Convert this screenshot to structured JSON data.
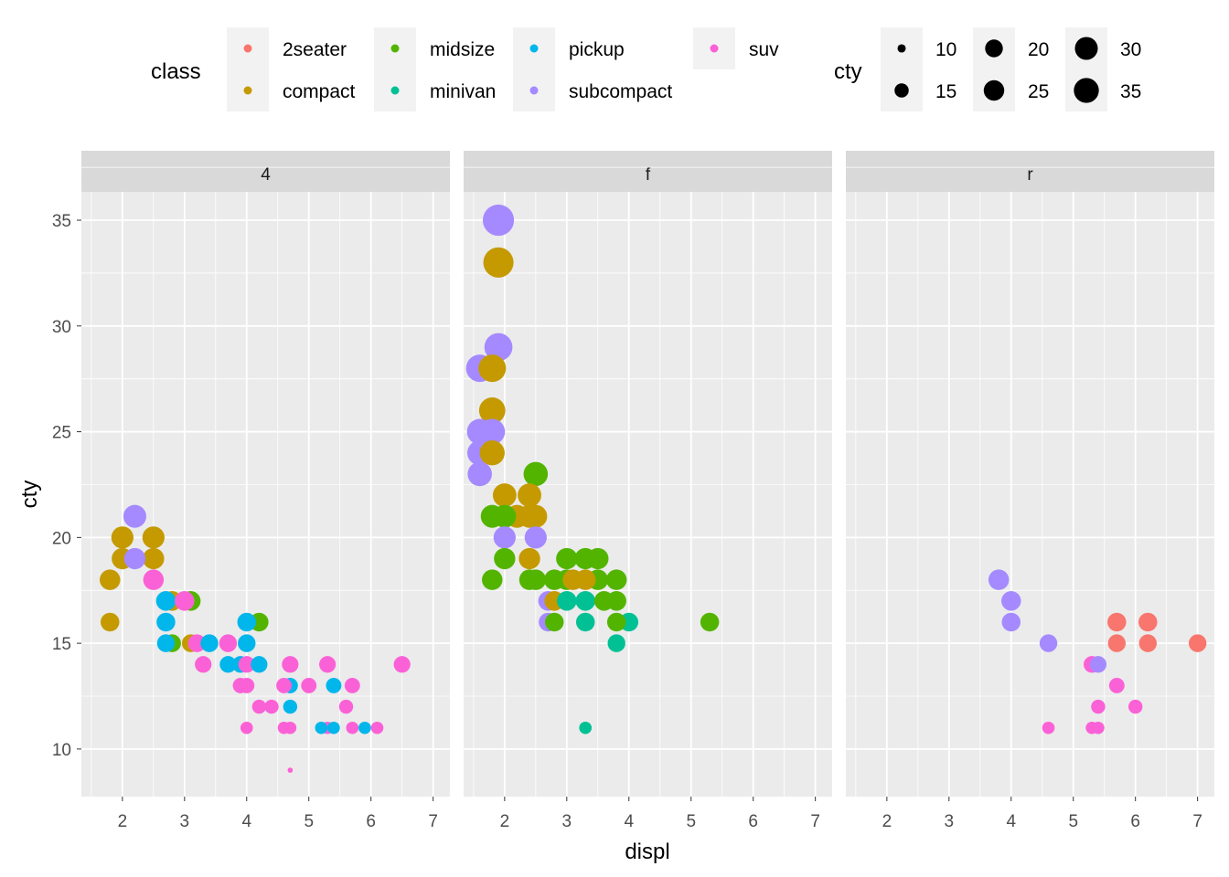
{
  "chart_data": {
    "type": "scatter",
    "xlabel": "displ",
    "ylabel": "cty",
    "xlim": [
      1.34,
      7.27
    ],
    "ylim": [
      7.75,
      36.34
    ],
    "x_ticks": [
      2,
      3,
      4,
      5,
      6,
      7
    ],
    "y_ticks": [
      10,
      15,
      20,
      25,
      30,
      35
    ],
    "grid": true,
    "legend_position": "top",
    "color_legend": {
      "title": "class",
      "entries": [
        "2seater",
        "compact",
        "midsize",
        "minivan",
        "pickup",
        "subcompact",
        "suv"
      ],
      "colors": {
        "2seater": "#F8766D",
        "compact": "#C49A00",
        "midsize": "#53B400",
        "minivan": "#00C094",
        "pickup": "#00B6EB",
        "subcompact": "#A58AFF",
        "suv": "#FB61D7"
      }
    },
    "size_legend": {
      "title": "cty",
      "entries": [
        10,
        15,
        20,
        25,
        30,
        35
      ]
    },
    "facets": [
      {
        "label": "4",
        "points": [
          [
            1.8,
            18,
            "compact"
          ],
          [
            1.8,
            16,
            "compact"
          ],
          [
            2.0,
            20,
            "compact"
          ],
          [
            2.0,
            19,
            "compact"
          ],
          [
            2.5,
            20,
            "compact"
          ],
          [
            2.5,
            19,
            "compact"
          ],
          [
            2.2,
            21,
            "subcompact"
          ],
          [
            2.2,
            19,
            "subcompact"
          ],
          [
            2.5,
            18,
            "suv"
          ],
          [
            2.8,
            17,
            "compact"
          ],
          [
            3.1,
            17,
            "midsize"
          ],
          [
            2.7,
            17,
            "pickup"
          ],
          [
            3.0,
            17,
            "suv"
          ],
          [
            2.7,
            16,
            "pickup"
          ],
          [
            2.8,
            15,
            "midsize"
          ],
          [
            2.7,
            15,
            "pickup"
          ],
          [
            3.1,
            15,
            "compact"
          ],
          [
            3.2,
            15,
            "suv"
          ],
          [
            3.4,
            15,
            "pickup"
          ],
          [
            3.7,
            15,
            "suv"
          ],
          [
            4.2,
            16,
            "midsize"
          ],
          [
            4.0,
            16,
            "pickup"
          ],
          [
            4.0,
            15,
            "pickup"
          ],
          [
            3.3,
            14,
            "suv"
          ],
          [
            3.7,
            14,
            "pickup"
          ],
          [
            3.9,
            14,
            "pickup"
          ],
          [
            4.0,
            14,
            "suv"
          ],
          [
            4.2,
            14,
            "pickup"
          ],
          [
            4.7,
            14,
            "suv"
          ],
          [
            5.3,
            14,
            "suv"
          ],
          [
            6.5,
            14,
            "suv"
          ],
          [
            3.9,
            13,
            "suv"
          ],
          [
            4.0,
            13,
            "suv"
          ],
          [
            4.7,
            13,
            "pickup"
          ],
          [
            4.6,
            13,
            "suv"
          ],
          [
            5.0,
            13,
            "suv"
          ],
          [
            5.4,
            13,
            "pickup"
          ],
          [
            5.7,
            13,
            "suv"
          ],
          [
            4.2,
            12,
            "suv"
          ],
          [
            4.4,
            12,
            "suv"
          ],
          [
            4.7,
            12,
            "pickup"
          ],
          [
            5.6,
            12,
            "suv"
          ],
          [
            4.0,
            11,
            "suv"
          ],
          [
            4.6,
            11,
            "suv"
          ],
          [
            4.7,
            11,
            "suv"
          ],
          [
            5.3,
            11,
            "suv"
          ],
          [
            5.2,
            11,
            "pickup"
          ],
          [
            5.4,
            11,
            "pickup"
          ],
          [
            5.7,
            11,
            "suv"
          ],
          [
            5.9,
            11,
            "pickup"
          ],
          [
            6.1,
            11,
            "suv"
          ],
          [
            4.7,
            9,
            "suv"
          ]
        ]
      },
      {
        "label": "f",
        "points": [
          [
            1.9,
            35,
            "subcompact"
          ],
          [
            1.9,
            33,
            "compact"
          ],
          [
            1.9,
            29,
            "subcompact"
          ],
          [
            1.6,
            28,
            "subcompact"
          ],
          [
            1.8,
            28,
            "compact"
          ],
          [
            1.8,
            26,
            "compact"
          ],
          [
            1.6,
            25,
            "subcompact"
          ],
          [
            1.8,
            25,
            "subcompact"
          ],
          [
            1.6,
            24,
            "subcompact"
          ],
          [
            1.8,
            24,
            "compact"
          ],
          [
            1.6,
            23,
            "subcompact"
          ],
          [
            2.5,
            23,
            "midsize"
          ],
          [
            2.0,
            22,
            "compact"
          ],
          [
            2.4,
            22,
            "compact"
          ],
          [
            2.2,
            21,
            "compact"
          ],
          [
            2.4,
            21,
            "compact"
          ],
          [
            2.5,
            21,
            "compact"
          ],
          [
            1.8,
            21,
            "midsize"
          ],
          [
            2.0,
            21,
            "midsize"
          ],
          [
            2.0,
            20,
            "subcompact"
          ],
          [
            2.5,
            20,
            "subcompact"
          ],
          [
            2.0,
            19,
            "midsize"
          ],
          [
            2.4,
            19,
            "compact"
          ],
          [
            3.0,
            19,
            "midsize"
          ],
          [
            3.3,
            19,
            "midsize"
          ],
          [
            3.5,
            19,
            "midsize"
          ],
          [
            1.8,
            18,
            "midsize"
          ],
          [
            2.4,
            18,
            "midsize"
          ],
          [
            2.5,
            18,
            "midsize"
          ],
          [
            2.8,
            18,
            "midsize"
          ],
          [
            3.0,
            18,
            "midsize"
          ],
          [
            3.1,
            18,
            "compact"
          ],
          [
            3.5,
            18,
            "midsize"
          ],
          [
            3.3,
            18,
            "compact"
          ],
          [
            3.8,
            18,
            "midsize"
          ],
          [
            2.7,
            17,
            "subcompact"
          ],
          [
            2.8,
            17,
            "compact"
          ],
          [
            3.0,
            17,
            "minivan"
          ],
          [
            3.3,
            17,
            "minivan"
          ],
          [
            3.6,
            17,
            "midsize"
          ],
          [
            3.8,
            17,
            "midsize"
          ],
          [
            2.7,
            16,
            "subcompact"
          ],
          [
            2.8,
            16,
            "midsize"
          ],
          [
            3.3,
            16,
            "minivan"
          ],
          [
            4.0,
            16,
            "minivan"
          ],
          [
            3.8,
            16,
            "midsize"
          ],
          [
            5.3,
            16,
            "midsize"
          ],
          [
            3.8,
            15,
            "minivan"
          ],
          [
            3.3,
            11,
            "minivan"
          ]
        ]
      },
      {
        "label": "r",
        "points": [
          [
            3.8,
            18,
            "subcompact"
          ],
          [
            4.0,
            17,
            "subcompact"
          ],
          [
            4.0,
            16,
            "subcompact"
          ],
          [
            4.6,
            15,
            "subcompact"
          ],
          [
            5.7,
            16,
            "2seater"
          ],
          [
            6.2,
            16,
            "2seater"
          ],
          [
            5.7,
            15,
            "2seater"
          ],
          [
            6.2,
            15,
            "2seater"
          ],
          [
            7.0,
            15,
            "2seater"
          ],
          [
            5.3,
            14,
            "suv"
          ],
          [
            5.4,
            14,
            "subcompact"
          ],
          [
            5.7,
            13,
            "suv"
          ],
          [
            5.4,
            12,
            "suv"
          ],
          [
            6.0,
            12,
            "suv"
          ],
          [
            4.6,
            11,
            "suv"
          ],
          [
            5.3,
            11,
            "suv"
          ],
          [
            5.4,
            11,
            "suv"
          ]
        ]
      }
    ]
  }
}
